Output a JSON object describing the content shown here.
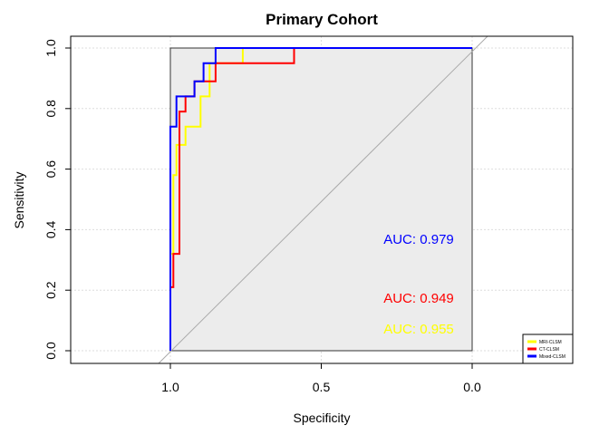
{
  "chart_data": {
    "type": "line",
    "title": "Primary Cohort",
    "xlabel": "Specificity",
    "ylabel": "Sensitivity",
    "xlim": [
      1.0,
      0.0
    ],
    "ylim": [
      0.0,
      1.0
    ],
    "x_reversed": true,
    "xticks": [
      "1.0",
      "0.5",
      "0.0"
    ],
    "xtick_values": [
      1.0,
      0.5,
      0.0
    ],
    "yticks": [
      "0.0",
      "0.2",
      "0.4",
      "0.6",
      "0.8",
      "1.0"
    ],
    "ytick_values": [
      0.0,
      0.2,
      0.4,
      0.6,
      0.8,
      1.0
    ],
    "grid": true,
    "panel_fill": "#ececec",
    "diagonal_reference": true,
    "legend_position": "bottom-right",
    "series": [
      {
        "name": "MRI-CLSM",
        "color": "#ffff00",
        "auc_text": "AUC: 0.955",
        "specificity": [
          1.0,
          1.0,
          0.99,
          0.99,
          0.98,
          0.98,
          0.95,
          0.95,
          0.9,
          0.9,
          0.87,
          0.87,
          0.76,
          0.76,
          0.0
        ],
        "sensitivity": [
          0.0,
          0.32,
          0.32,
          0.58,
          0.58,
          0.68,
          0.68,
          0.74,
          0.74,
          0.84,
          0.84,
          0.95,
          0.95,
          1.0,
          1.0
        ]
      },
      {
        "name": "CT-CLSM",
        "color": "#ff0000",
        "auc_text": "AUC: 0.949",
        "specificity": [
          1.0,
          1.0,
          0.99,
          0.99,
          0.97,
          0.97,
          0.95,
          0.95,
          0.92,
          0.92,
          0.85,
          0.85,
          0.59,
          0.59,
          0.0
        ],
        "sensitivity": [
          0.0,
          0.21,
          0.21,
          0.32,
          0.32,
          0.79,
          0.79,
          0.84,
          0.84,
          0.89,
          0.89,
          0.95,
          0.95,
          1.0,
          1.0
        ]
      },
      {
        "name": "Mixed-CLSM",
        "color": "#0000ff",
        "auc_text": "AUC: 0.979",
        "specificity": [
          1.0,
          1.0,
          0.98,
          0.98,
          0.92,
          0.92,
          0.89,
          0.89,
          0.85,
          0.85,
          0.0
        ],
        "sensitivity": [
          0.0,
          0.74,
          0.74,
          0.84,
          0.84,
          0.89,
          0.89,
          0.95,
          0.95,
          1.0,
          1.0
        ]
      }
    ],
    "auc_label_order_top_to_bottom": [
      "Mixed-CLSM",
      "CT-CLSM",
      "MRI-CLSM"
    ]
  }
}
